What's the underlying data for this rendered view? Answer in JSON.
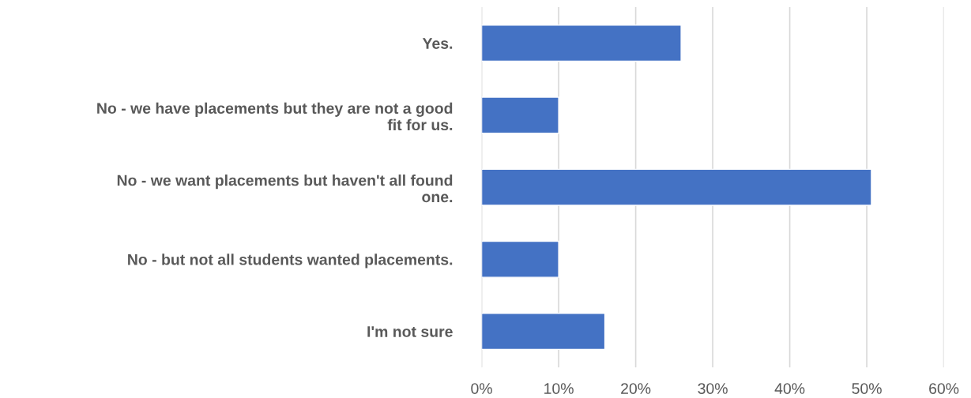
{
  "chart_data": {
    "type": "bar",
    "orientation": "horizontal",
    "categories": [
      "Yes.",
      "No - we have placements but they are not a good fit for us.",
      "No - we want placements but haven't all found one.",
      "No - but not all students wanted placements.",
      "I'm not sure"
    ],
    "values": [
      25.9,
      10,
      50.6,
      10,
      16
    ],
    "color": "#4472c4",
    "xlim": [
      0,
      60
    ],
    "xticks": [
      {
        "value": 0,
        "label": "0%"
      },
      {
        "value": 10,
        "label": "10%"
      },
      {
        "value": 20,
        "label": "20%"
      },
      {
        "value": 30,
        "label": "30%"
      },
      {
        "value": 40,
        "label": "40%"
      },
      {
        "value": 50,
        "label": "50%"
      },
      {
        "value": 60,
        "label": "60%"
      }
    ],
    "grid": "x"
  }
}
